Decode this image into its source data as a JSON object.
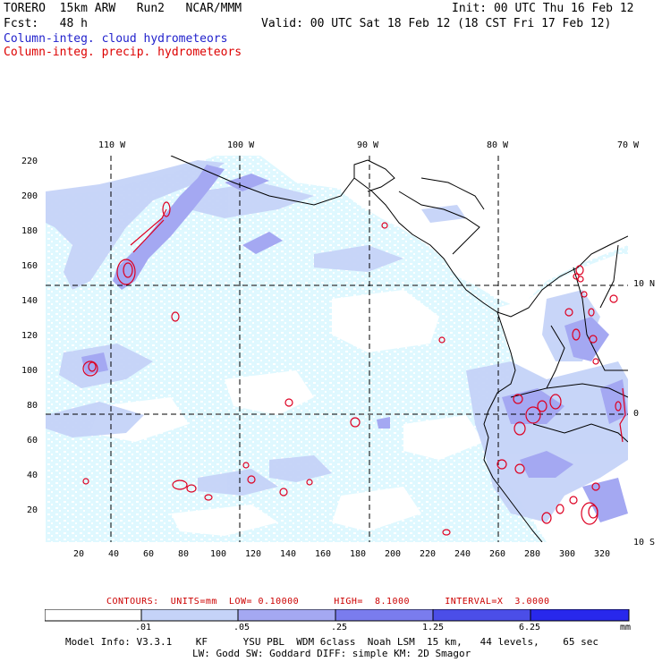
{
  "header": {
    "model": "TORERO  15km ARW   Run2   NCAR/MMM",
    "init": "Init: 00 UTC Thu 16 Feb 12",
    "fcst": "Fcst:   48 h",
    "valid": "Valid: 00 UTC Sat 18 Feb 12 (18 CST Fri 17 Feb 12)",
    "field1": "Column-integ. cloud hydrometeors",
    "field2": "Column-integ. precip. hydrometeors"
  },
  "colors": {
    "cloud_field_label": "#2222cc",
    "precip_field_label": "#dd0000",
    "contour_line": "#dd0022",
    "coast": "#000000",
    "grid": "#000000"
  },
  "longitude_labels": [
    "110 W",
    "100 W",
    "90 W",
    "80 W",
    "70 W"
  ],
  "latitude_labels": [
    "10 N",
    "0",
    "10 S"
  ],
  "y_ticks": [
    "220",
    "200",
    "180",
    "160",
    "140",
    "120",
    "100",
    "80",
    "60",
    "40",
    "20"
  ],
  "x_ticks": [
    "20",
    "40",
    "60",
    "80",
    "100",
    "120",
    "140",
    "160",
    "180",
    "200",
    "220",
    "240",
    "260",
    "280",
    "300",
    "320"
  ],
  "contour_info": "CONTOURS:  UNITS=mm  LOW= 0.10000      HIGH=  8.1000      INTERVAL=X  3.0000",
  "colorbar": {
    "labels": [
      ".01",
      ".05",
      ".25",
      "1.25",
      "6.25"
    ],
    "unit": "mm",
    "colors": [
      "#ffffff",
      "#dff8ff",
      "#c5d3f8",
      "#a4a8f2",
      "#7a7cee",
      "#4b4ee8",
      "#2828ec"
    ]
  },
  "footer": {
    "line1": "Model Info: V3.3.1    KF      YSU PBL  WDM 6class  Noah LSM  15 km,   44 levels,    65 sec",
    "line2": "LW: Godd SW: Goddard DIFF: simple KM: 2D Smagor"
  }
}
